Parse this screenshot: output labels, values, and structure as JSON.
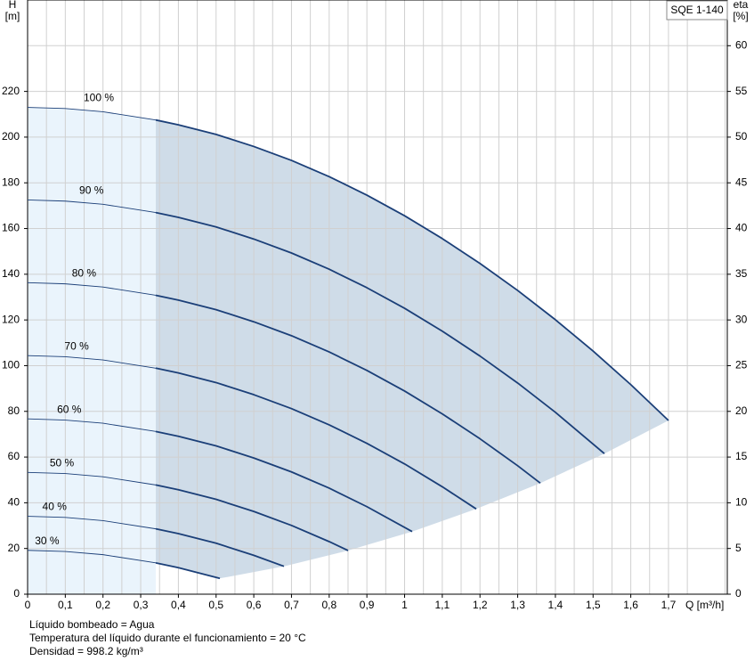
{
  "chart_data": {
    "type": "line",
    "title": "SQE 1-140",
    "xlabel": "Q [m³/h]",
    "ylabel": "H",
    "yunit": "[m]",
    "y2label": "eta",
    "y2unit": "[%]",
    "xlim": [
      0,
      1.856
    ],
    "ylim": [
      0,
      260
    ],
    "y2lim": [
      0,
      65
    ],
    "xticks": [
      0,
      {
        "value": 0.1,
        "label": "0,1"
      },
      {
        "value": 0.2,
        "label": "0,2"
      },
      {
        "value": 0.3,
        "label": "0,3"
      },
      {
        "value": 0.4,
        "label": "0,4"
      },
      {
        "value": 0.5,
        "label": "0,5"
      },
      {
        "value": 0.6,
        "label": "0,6"
      },
      {
        "value": 0.7,
        "label": "0,7"
      },
      {
        "value": 0.8,
        "label": "0,8"
      },
      {
        "value": 0.9,
        "label": "0,9"
      },
      1,
      {
        "value": 1.1,
        "label": "1,1"
      },
      {
        "value": 1.2,
        "label": "1,2"
      },
      {
        "value": 1.3,
        "label": "1,3"
      },
      {
        "value": 1.4,
        "label": "1,4"
      },
      {
        "value": 1.5,
        "label": "1,5"
      },
      {
        "value": 1.6,
        "label": "1,6"
      },
      {
        "value": 1.7,
        "label": "1,7"
      }
    ],
    "xminor": [
      0.05,
      0.15,
      0.25,
      0.35,
      0.45,
      0.55,
      0.65,
      0.75,
      0.85,
      0.95,
      1.05,
      1.15,
      1.25,
      1.35,
      1.45,
      1.55,
      1.65,
      1.75,
      1.85
    ],
    "yticks": [
      0,
      20,
      40,
      60,
      80,
      100,
      120,
      140,
      160,
      180,
      200,
      220
    ],
    "y2ticks": [
      0,
      5,
      10,
      15,
      20,
      25,
      30,
      35,
      40,
      45,
      50,
      55,
      60
    ],
    "grid": true,
    "lower_limit_q": 0.34,
    "series": [
      {
        "name": "100 %",
        "color": "#1b3f78",
        "x": [
          0,
          0.1,
          0.2,
          0.34,
          0.4,
          0.5,
          0.6,
          0.7,
          0.8,
          0.9,
          1.0,
          1.1,
          1.2,
          1.3,
          1.4,
          1.5,
          1.6,
          1.7
        ],
        "values": [
          213.0,
          212.5,
          211.1,
          207.5,
          205.4,
          201.2,
          195.9,
          189.8,
          182.7,
          174.6,
          165.6,
          155.6,
          144.7,
          132.9,
          120.1,
          106.4,
          91.7,
          76.0
        ]
      },
      {
        "name": "90 %",
        "color": "#1b3f78",
        "x": [
          0,
          0.1,
          0.2,
          0.34,
          0.4,
          0.5,
          0.6,
          0.7,
          0.8,
          0.9,
          1.0,
          1.1,
          1.2,
          1.3,
          1.4,
          1.53
        ],
        "values": [
          172.5,
          172.0,
          170.6,
          167.0,
          164.9,
          160.7,
          155.4,
          149.3,
          142.2,
          134.1,
          125.1,
          115.1,
          104.2,
          92.4,
          79.6,
          61.5
        ]
      },
      {
        "name": "80 %",
        "color": "#1b3f78",
        "x": [
          0,
          0.1,
          0.2,
          0.34,
          0.4,
          0.5,
          0.6,
          0.7,
          0.8,
          0.9,
          1.0,
          1.1,
          1.2,
          1.3,
          1.36
        ],
        "values": [
          136.3,
          135.8,
          134.4,
          130.8,
          128.7,
          124.5,
          119.2,
          113.1,
          106.0,
          97.9,
          88.9,
          78.9,
          68.0,
          56.2,
          48.6
        ]
      },
      {
        "name": "70 %",
        "color": "#1b3f78",
        "x": [
          0,
          0.1,
          0.2,
          0.34,
          0.4,
          0.5,
          0.6,
          0.7,
          0.8,
          0.9,
          1.0,
          1.1,
          1.19
        ],
        "values": [
          104.4,
          103.9,
          102.5,
          98.9,
          96.8,
          92.6,
          87.3,
          81.2,
          74.1,
          66.0,
          57.0,
          47.0,
          37.3
        ]
      },
      {
        "name": "60 %",
        "color": "#1b3f78",
        "x": [
          0,
          0.1,
          0.2,
          0.34,
          0.4,
          0.5,
          0.6,
          0.7,
          0.8,
          0.9,
          1.02
        ],
        "values": [
          76.7,
          76.2,
          74.8,
          71.2,
          69.1,
          64.9,
          59.6,
          53.5,
          46.4,
          38.3,
          27.4
        ]
      },
      {
        "name": "50 %",
        "color": "#1b3f78",
        "x": [
          0,
          0.1,
          0.2,
          0.34,
          0.4,
          0.5,
          0.6,
          0.7,
          0.8,
          0.85
        ],
        "values": [
          53.3,
          52.8,
          51.4,
          47.8,
          45.7,
          41.5,
          36.2,
          30.1,
          23.0,
          19.1
        ]
      },
      {
        "name": "40 %",
        "color": "#1b3f78",
        "x": [
          0,
          0.1,
          0.2,
          0.34,
          0.4,
          0.5,
          0.6,
          0.68
        ],
        "values": [
          34.1,
          33.6,
          32.2,
          28.6,
          26.5,
          22.3,
          17.0,
          12.2
        ]
      },
      {
        "name": "30 %",
        "color": "#1b3f78",
        "x": [
          0,
          0.1,
          0.2,
          0.34,
          0.4,
          0.51
        ],
        "values": [
          19.2,
          18.7,
          17.3,
          13.7,
          11.6,
          6.9
        ]
      }
    ],
    "notes": [
      "Líquido bombeado = Agua",
      "Temperatura del líquido durante el funcionamiento = 20 °C",
      "Densidad = 998.2 kg/m³"
    ]
  }
}
